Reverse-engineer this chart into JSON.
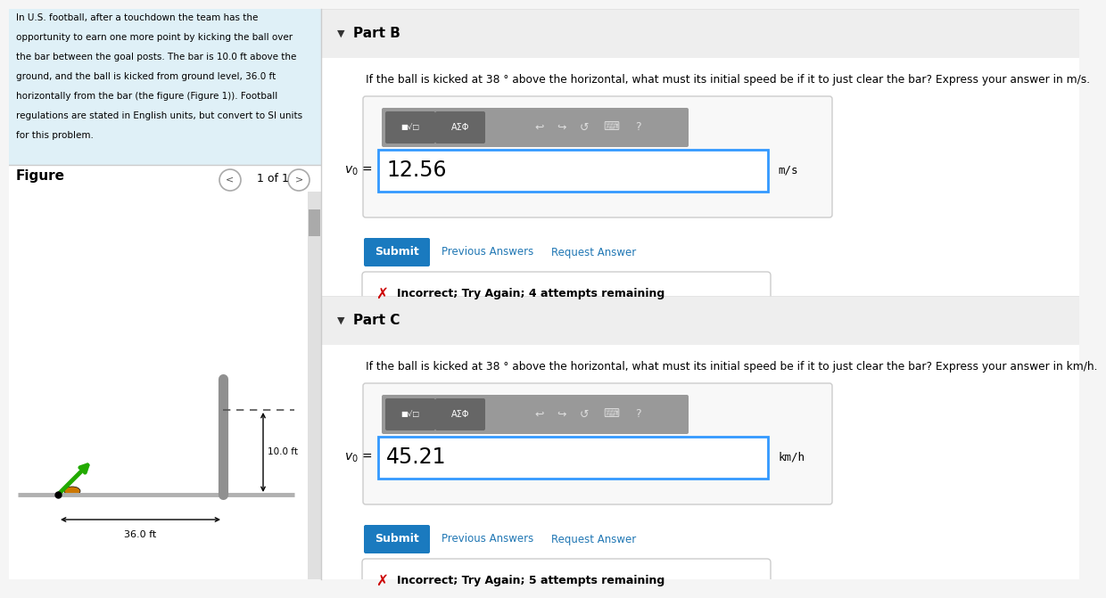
{
  "left_bg": "#dff0f7",
  "fig_bg": "#ffffff",
  "right_bg": "#f5f5f5",
  "content_bg": "#ffffff",
  "header_bg": "#efefef",
  "left_text": "In U.S. football, after a touchdown the team has the\nopportunity to earn one more point by kicking the ball over\nthe bar between the goal posts. The bar is 10.0 ft above the\nground, and the ball is kicked from ground level, 36.0 ft\nhorizontally from the bar (the figure (Figure 1)). Football\nregulations are stated in English units, but convert to SI units\nfor this problem.",
  "figure_label": "Figure",
  "nav_text": "1 of 1",
  "part_b_header": "Part B",
  "part_b_q": "If the ball is kicked at 38 ° above the horizontal, what must its initial speed be if it to just clear the bar? Express your answer in m/s.",
  "part_b_val": "12.56",
  "part_b_unit": "m/s",
  "part_c_header": "Part C",
  "part_c_q": "If the ball is kicked at 38 ° above the horizontal, what must its initial speed be if it to just clear the bar? Express your answer in km/h.",
  "part_c_val": "45.21",
  "part_c_unit": "km/h",
  "submit_bg": "#1a7abf",
  "submit_text": "#ffffff",
  "link_color": "#2077b4",
  "input_border": "#3399ff",
  "toolbar_bg": "#888888",
  "btn_bg": "#666666",
  "incorr_b": "Incorrect; Try Again; 4 attempts remaining",
  "incorr_c": "Incorrect; Try Again; 5 attempts remaining",
  "ground_color": "#b0b0b0",
  "post_color": "#909090",
  "arrow_green": "#22aa00",
  "ball_color": "#cc7700"
}
